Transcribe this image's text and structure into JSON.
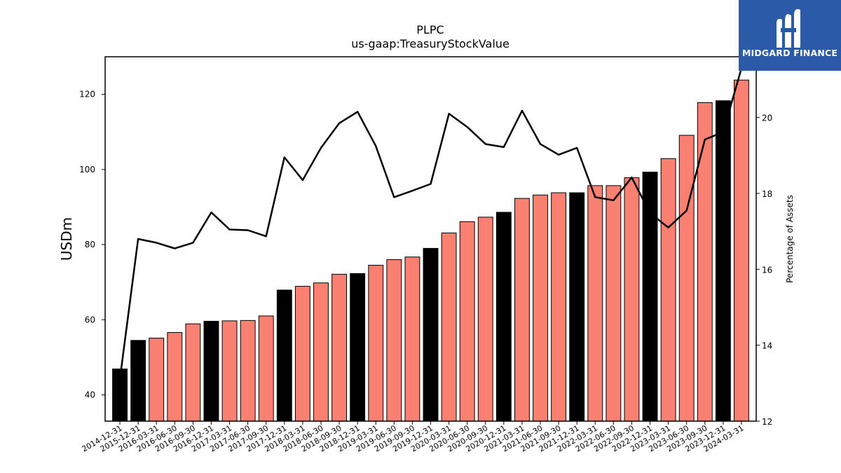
{
  "chart_data": {
    "type": "bar",
    "title": "PLPC",
    "subtitle": "us-gaap:TreasuryStockValue",
    "ylabel": "USDm",
    "ylabel_right": "Percentage of Assets",
    "ylim": [
      33,
      130
    ],
    "ylim_right": [
      12,
      21.6
    ],
    "yticks": [
      40,
      60,
      80,
      100,
      120
    ],
    "yticks_right": [
      12,
      14,
      16,
      18,
      20
    ],
    "categories": [
      "2014-12-31",
      "2015-12-31",
      "2016-03-31",
      "2016-06-30",
      "2016-09-30",
      "2016-12-31",
      "2017-03-31",
      "2017-06-30",
      "2017-09-30",
      "2017-12-31",
      "2018-03-31",
      "2018-06-30",
      "2018-09-30",
      "2018-12-31",
      "2019-03-31",
      "2019-06-30",
      "2019-09-30",
      "2019-12-31",
      "2020-03-31",
      "2020-06-30",
      "2020-09-30",
      "2020-12-31",
      "2021-03-31",
      "2021-06-30",
      "2021-09-30",
      "2021-12-31",
      "2022-03-31",
      "2022-06-30",
      "2022-09-30",
      "2022-12-31",
      "2023-03-31",
      "2023-06-30",
      "2023-09-30",
      "2023-12-31",
      "2024-03-31"
    ],
    "series": [
      {
        "chart": "bar",
        "values": [
          46.9,
          54.5,
          55.1,
          56.6,
          58.9,
          59.6,
          59.7,
          59.8,
          61.0,
          67.9,
          68.9,
          69.8,
          72.1,
          72.3,
          74.5,
          76.0,
          76.7,
          79.0,
          83.1,
          86.1,
          87.3,
          88.6,
          92.3,
          93.2,
          93.8,
          93.8,
          95.7,
          95.7,
          97.8,
          99.3,
          102.9,
          109.1,
          117.8,
          118.3,
          123.8
        ]
      },
      {
        "chart": "line",
        "axis": "right",
        "values": [
          13.1,
          16.8,
          16.7,
          16.55,
          16.7,
          17.5,
          17.05,
          17.03,
          16.87,
          18.95,
          18.35,
          19.2,
          19.85,
          20.15,
          19.25,
          17.9,
          18.07,
          18.25,
          20.1,
          19.75,
          19.3,
          19.22,
          20.18,
          19.3,
          19.02,
          19.2,
          17.9,
          17.82,
          18.42,
          17.48,
          17.1,
          17.55,
          19.42,
          19.62,
          21.3
        ]
      }
    ],
    "bar_colors": [
      "#000000",
      "#000000",
      "#fa8072",
      "#fa8072",
      "#fa8072",
      "#000000",
      "#fa8072",
      "#fa8072",
      "#fa8072",
      "#000000",
      "#fa8072",
      "#fa8072",
      "#fa8072",
      "#000000",
      "#fa8072",
      "#fa8072",
      "#fa8072",
      "#000000",
      "#fa8072",
      "#fa8072",
      "#fa8072",
      "#000000",
      "#fa8072",
      "#fa8072",
      "#fa8072",
      "#000000",
      "#fa8072",
      "#fa8072",
      "#fa8072",
      "#000000",
      "#fa8072",
      "#fa8072",
      "#fa8072",
      "#000000",
      "#fa8072"
    ],
    "line_color": "#000000",
    "grid": false
  },
  "logo": {
    "text": "MIDGARD FINANCE",
    "background": "#2b5aa8",
    "icon": "midgard-m-logo-icon"
  }
}
